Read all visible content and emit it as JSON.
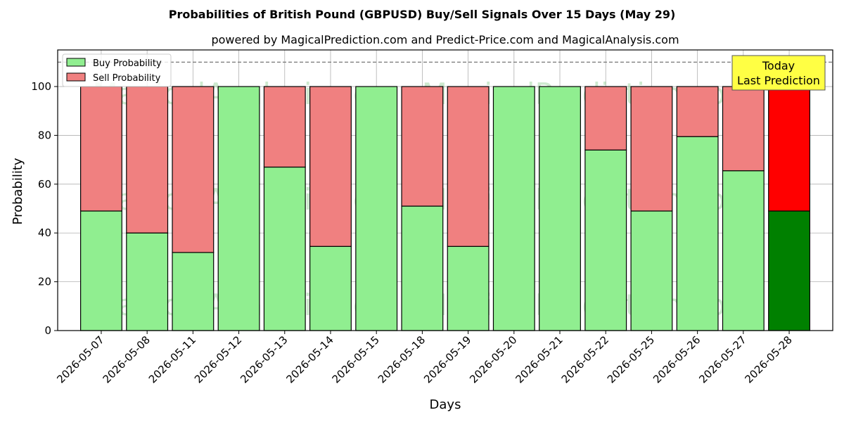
{
  "chart_data": {
    "type": "bar",
    "stacked": true,
    "title": "Probabilities of British Pound (GBPUSD) Buy/Sell Signals Over 15 Days (May 29)",
    "subtitle": "powered by MagicalPrediction.com and Predict-Price.com and MagicalAnalysis.com",
    "xlabel": "Days",
    "ylabel": "Probability",
    "ylim": [
      0,
      115
    ],
    "yticks": [
      0,
      20,
      40,
      60,
      80,
      100
    ],
    "reference_line": 110,
    "grid": true,
    "legend_position": "top-left",
    "categories": [
      "2026-05-07",
      "2026-05-08",
      "2026-05-11",
      "2026-05-12",
      "2026-05-13",
      "2026-05-14",
      "2026-05-15",
      "2026-05-18",
      "2026-05-19",
      "2026-05-20",
      "2026-05-21",
      "2026-05-22",
      "2026-05-25",
      "2026-05-26",
      "2026-05-27",
      "2026-05-28"
    ],
    "series": [
      {
        "name": "Buy Probability",
        "color": "#90ee90",
        "values": [
          49,
          40,
          32,
          100,
          67,
          34.5,
          100,
          51,
          34.5,
          100,
          100,
          74,
          49,
          79.5,
          65.5,
          49
        ]
      },
      {
        "name": "Sell Probability",
        "color": "#f08080",
        "values": [
          51,
          60,
          68,
          0,
          33,
          65.5,
          0,
          49,
          65.5,
          0,
          0,
          26,
          51,
          20.5,
          34.5,
          51
        ]
      }
    ],
    "highlight": {
      "index": 15,
      "buy_color": "#008000",
      "sell_color": "#ff0000"
    },
    "annotation": {
      "lines": [
        "Today",
        "Last Prediction"
      ],
      "background": "#ffff44"
    },
    "watermarks": [
      "MagicalAnalysis.com",
      "MagicalPrediction.com"
    ]
  }
}
